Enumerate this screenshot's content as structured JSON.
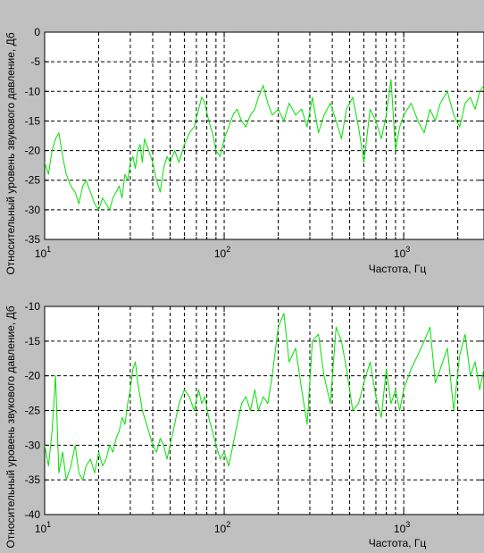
{
  "chart_data": [
    {
      "type": "line",
      "xlabel": "Частота, Гц",
      "ylabel": "Относительный уровень звукового давление, Дб",
      "xscale": "log",
      "xlim": [
        10,
        2800
      ],
      "ylim": [
        -35,
        0
      ],
      "yticks": [
        "0",
        "-5",
        "-10",
        "-15",
        "-20",
        "-25",
        "-30",
        "-35"
      ],
      "xticks": [
        {
          "base": "10",
          "exp": "1"
        },
        {
          "base": "10",
          "exp": "2"
        },
        {
          "base": "10",
          "exp": "3"
        }
      ],
      "grid": true,
      "line_color": "#00e000",
      "series": [
        {
          "x": [
            10,
            10.5,
            11,
            11.5,
            12,
            12.6,
            13.2,
            14,
            14.8,
            15.5,
            16.3,
            17,
            18,
            19,
            20,
            21,
            22,
            23,
            24,
            25,
            26,
            27,
            28,
            29,
            30,
            31,
            32,
            33,
            34,
            35,
            36,
            38,
            40,
            42,
            44,
            46,
            48,
            50,
            53,
            56,
            60,
            64,
            68,
            72,
            75,
            78,
            82,
            86,
            90,
            95,
            100,
            106,
            112,
            118,
            125,
            132,
            140,
            148,
            155,
            165,
            175,
            185,
            200,
            215,
            230,
            250,
            270,
            290,
            310,
            335,
            360,
            390,
            420,
            450,
            480,
            520,
            560,
            600,
            650,
            700,
            750,
            800,
            850,
            900,
            950,
            1000,
            1100,
            1200,
            1300,
            1400,
            1500,
            1600,
            1750,
            1900,
            2050,
            2200,
            2350,
            2500,
            2650,
            2800
          ],
          "y": [
            -22,
            -24,
            -20,
            -18,
            -17,
            -21,
            -24,
            -26,
            -27,
            -29,
            -26,
            -25,
            -27,
            -29,
            -30,
            -28,
            -29,
            -30,
            -28,
            -27,
            -26,
            -28,
            -24,
            -25,
            -22,
            -21,
            -23,
            -20,
            -19,
            -22,
            -18,
            -20,
            -22,
            -25,
            -27,
            -23,
            -21,
            -22,
            -20,
            -22,
            -19,
            -17,
            -16,
            -13,
            -11,
            -12,
            -15,
            -17,
            -20,
            -21,
            -18,
            -16,
            -14,
            -13,
            -15,
            -16,
            -14,
            -13,
            -11,
            -9,
            -12,
            -14,
            -13,
            -15,
            -12,
            -14,
            -13,
            -16,
            -11,
            -17,
            -14,
            -12,
            -15,
            -18,
            -13,
            -11,
            -16,
            -22,
            -13,
            -15,
            -18,
            -14,
            -8,
            -20,
            -16,
            -14,
            -12,
            -15,
            -17,
            -13,
            -15,
            -12,
            -10,
            -14,
            -16,
            -12,
            -11,
            -13,
            -10,
            -9
          ]
        }
      ]
    },
    {
      "type": "line",
      "xlabel": "Частота, Гц",
      "ylabel": "Относительный уровень звукового давление, Дб",
      "xscale": "log",
      "xlim": [
        10,
        2800
      ],
      "ylim": [
        -40,
        -10
      ],
      "yticks": [
        "-10",
        "-15",
        "-20",
        "-25",
        "-30",
        "-35",
        "-40"
      ],
      "xticks": [
        {
          "base": "10",
          "exp": "1"
        },
        {
          "base": "10",
          "exp": "2"
        },
        {
          "base": "10",
          "exp": "3"
        }
      ],
      "grid": true,
      "line_color": "#00e000",
      "series": [
        {
          "x": [
            10,
            10.5,
            11,
            11.5,
            12,
            12.6,
            13.2,
            14,
            14.8,
            15.5,
            16.3,
            17,
            18,
            19,
            20,
            21,
            22,
            23,
            24,
            25,
            26,
            27,
            28,
            29,
            30,
            31,
            32,
            33,
            34,
            35,
            36,
            38,
            40,
            42,
            44,
            46,
            48,
            50,
            53,
            56,
            60,
            64,
            68,
            72,
            75,
            78,
            82,
            86,
            90,
            95,
            100,
            106,
            112,
            118,
            125,
            132,
            140,
            148,
            155,
            165,
            175,
            185,
            200,
            215,
            230,
            250,
            270,
            290,
            310,
            335,
            360,
            390,
            420,
            450,
            480,
            520,
            560,
            600,
            650,
            700,
            750,
            800,
            850,
            900,
            950,
            1000,
            1100,
            1200,
            1300,
            1400,
            1500,
            1600,
            1750,
            1900,
            2050,
            2200,
            2350,
            2500,
            2650,
            2800
          ],
          "y": [
            -30,
            -33,
            -28,
            -20,
            -34,
            -31,
            -35,
            -33,
            -30,
            -34,
            -35,
            -33,
            -32,
            -34,
            -31,
            -33,
            -32,
            -30,
            -31,
            -29,
            -28,
            -26,
            -27,
            -24,
            -22,
            -19,
            -18,
            -21,
            -23,
            -25,
            -26,
            -28,
            -30,
            -31,
            -29,
            -30,
            -32,
            -30,
            -27,
            -24,
            -22,
            -23,
            -25,
            -22,
            -24,
            -23,
            -26,
            -28,
            -30,
            -32,
            -31,
            -33,
            -30,
            -27,
            -24,
            -23,
            -25,
            -22,
            -25,
            -23,
            -24,
            -20,
            -13,
            -11,
            -18,
            -16,
            -22,
            -27,
            -15,
            -14,
            -20,
            -24,
            -13,
            -15,
            -19,
            -25,
            -24,
            -21,
            -18,
            -23,
            -26,
            -19,
            -24,
            -22,
            -25,
            -22,
            -19,
            -17,
            -15,
            -13,
            -21,
            -19,
            -16,
            -25,
            -17,
            -14,
            -20,
            -18,
            -22,
            -19
          ]
        }
      ]
    }
  ]
}
